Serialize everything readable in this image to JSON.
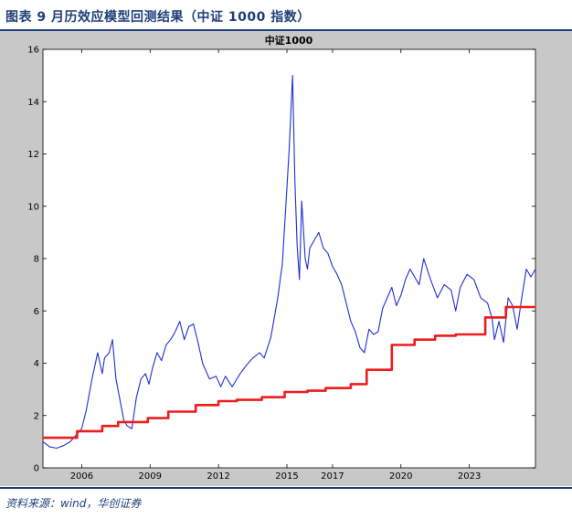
{
  "caption": "图表 9   月历效应模型回测结果（中证 1000 指数）",
  "source": "资料来源：wind，华创证券",
  "colors": {
    "accent": "#1f3e78",
    "frame": "#c8c8c8",
    "index_line": "#1f2fd0",
    "model_line": "#ee1c1c"
  },
  "chart_data": {
    "type": "line",
    "title": "中证1000",
    "xlabel": "",
    "ylabel": "",
    "xlim": [
      2004.3,
      2025.9
    ],
    "ylim": [
      0,
      16
    ],
    "yticks": [
      "0",
      "2",
      "4",
      "6",
      "8",
      "10",
      "12",
      "14",
      "16"
    ],
    "yticks_values": [
      0,
      2,
      4,
      6,
      8,
      10,
      12,
      14,
      16
    ],
    "xticks": [
      "2006",
      "2009",
      "2012",
      "2015",
      "2017",
      "2020",
      "2023"
    ],
    "xticks_values": [
      2006,
      2009,
      2012,
      2015,
      2017,
      2020,
      2023
    ],
    "series": [
      {
        "color": "blue",
        "x": [
          2004.3,
          2004.6,
          2004.9,
          2005.2,
          2005.5,
          2005.8,
          2006.0,
          2006.2,
          2006.45,
          2006.7,
          2006.9,
          2007.0,
          2007.2,
          2007.35,
          2007.5,
          2007.7,
          2007.85,
          2008.0,
          2008.2,
          2008.4,
          2008.6,
          2008.8,
          2008.95,
          2009.1,
          2009.3,
          2009.5,
          2009.7,
          2009.9,
          2010.1,
          2010.3,
          2010.5,
          2010.7,
          2010.9,
          2011.1,
          2011.3,
          2011.6,
          2011.9,
          2012.1,
          2012.3,
          2012.6,
          2012.95,
          2013.2,
          2013.5,
          2013.8,
          2014.0,
          2014.3,
          2014.6,
          2014.8,
          2014.95,
          2015.1,
          2015.25,
          2015.35,
          2015.45,
          2015.55,
          2015.65,
          2015.8,
          2015.9,
          2016.0,
          2016.2,
          2016.4,
          2016.6,
          2016.8,
          2017.0,
          2017.2,
          2017.4,
          2017.6,
          2017.8,
          2018.0,
          2018.2,
          2018.4,
          2018.6,
          2018.8,
          2019.0,
          2019.2,
          2019.4,
          2019.6,
          2019.8,
          2020.0,
          2020.2,
          2020.4,
          2020.6,
          2020.8,
          2021.0,
          2021.3,
          2021.6,
          2021.9,
          2022.2,
          2022.4,
          2022.6,
          2022.9,
          2023.2,
          2023.5,
          2023.8,
          2024.0,
          2024.1,
          2024.3,
          2024.5,
          2024.7,
          2024.9,
          2025.1,
          2025.3,
          2025.5,
          2025.7,
          2025.9
        ],
        "y": [
          1.0,
          0.8,
          0.75,
          0.85,
          1.0,
          1.3,
          1.5,
          2.2,
          3.4,
          4.4,
          3.6,
          4.2,
          4.4,
          4.9,
          3.4,
          2.5,
          1.8,
          1.6,
          1.5,
          2.7,
          3.4,
          3.6,
          3.2,
          3.8,
          4.4,
          4.1,
          4.7,
          4.9,
          5.2,
          5.6,
          4.9,
          5.4,
          5.5,
          4.8,
          4.0,
          3.4,
          3.5,
          3.1,
          3.5,
          3.1,
          3.6,
          3.9,
          4.2,
          4.4,
          4.2,
          5.0,
          6.5,
          7.8,
          10.0,
          12.2,
          15.0,
          11.0,
          8.5,
          7.2,
          10.2,
          8.0,
          7.6,
          8.4,
          8.7,
          9.0,
          8.4,
          8.2,
          7.7,
          7.4,
          7.0,
          6.3,
          5.6,
          5.2,
          4.6,
          4.4,
          5.3,
          5.1,
          5.2,
          6.1,
          6.5,
          6.9,
          6.2,
          6.6,
          7.2,
          7.6,
          7.3,
          7.0,
          8.0,
          7.2,
          6.5,
          7.0,
          6.8,
          6.0,
          6.9,
          7.4,
          7.2,
          6.5,
          6.3,
          5.7,
          4.9,
          5.6,
          4.8,
          6.5,
          6.2,
          5.3,
          6.5,
          7.6,
          7.3,
          7.6
        ]
      },
      {
        "color": "red",
        "x": [
          2004.3,
          2005.8,
          2005.8,
          2006.9,
          2006.9,
          2007.6,
          2007.6,
          2008.9,
          2008.9,
          2009.8,
          2009.8,
          2011.0,
          2011.0,
          2012.0,
          2012.0,
          2012.8,
          2012.8,
          2013.9,
          2013.9,
          2014.9,
          2014.9,
          2015.9,
          2015.9,
          2016.7,
          2016.7,
          2017.8,
          2017.8,
          2018.5,
          2018.5,
          2019.6,
          2019.6,
          2020.6,
          2020.6,
          2021.5,
          2021.5,
          2022.4,
          2022.4,
          2023.7,
          2023.7,
          2024.6,
          2024.6,
          2025.9
        ],
        "y": [
          1.15,
          1.15,
          1.4,
          1.4,
          1.6,
          1.6,
          1.75,
          1.75,
          1.9,
          1.9,
          2.15,
          2.15,
          2.4,
          2.4,
          2.55,
          2.55,
          2.6,
          2.6,
          2.7,
          2.7,
          2.9,
          2.9,
          2.95,
          2.95,
          3.05,
          3.05,
          3.2,
          3.2,
          3.75,
          3.75,
          4.7,
          4.7,
          4.9,
          4.9,
          5.05,
          5.05,
          5.1,
          5.1,
          5.75,
          5.75,
          6.15,
          6.15
        ]
      }
    ]
  }
}
